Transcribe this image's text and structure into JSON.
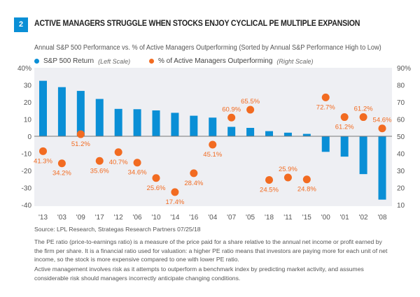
{
  "figure_number": "2",
  "title": "ACTIVE MANAGERS STRUGGLE WHEN STOCKS ENJOY CYCLICAL PE MULTIPLE EXPANSION",
  "chart_data": {
    "type": "bar",
    "title": "ACTIVE MANAGERS STRUGGLE WHEN STOCKS ENJOY CYCLICAL PE MULTIPLE EXPANSION",
    "subtitle": "Annual S&P 500 Performance vs. % of Active Managers Outperforming (Sorted by Annual S&P Performance High to Low)",
    "categories": [
      "'13",
      "'03",
      "'09",
      "'17",
      "'12",
      "'06",
      "'10",
      "'14",
      "'16",
      "'04",
      "'07",
      "'05",
      "'18",
      "'11",
      "'15",
      "'00",
      "'01",
      "'02",
      "'08"
    ],
    "series": [
      {
        "name": "S&P 500 Return",
        "name_note": "(Left Scale)",
        "type": "bar",
        "axis": "left",
        "color": "#0a8fd6",
        "values": [
          32.4,
          28.7,
          26.5,
          21.8,
          16.0,
          15.8,
          15.1,
          13.7,
          12.0,
          10.9,
          5.5,
          4.9,
          3.0,
          2.1,
          1.4,
          -9.1,
          -11.9,
          -22.1,
          -37.0
        ]
      },
      {
        "name": "% of Active Managers Outperforming",
        "name_note": "(Right Scale)",
        "type": "scatter",
        "axis": "right",
        "color": "#f26b21",
        "values": [
          41.3,
          34.2,
          51.2,
          35.6,
          40.7,
          34.6,
          25.6,
          17.4,
          28.4,
          45.1,
          60.9,
          65.5,
          24.5,
          25.9,
          24.8,
          72.7,
          61.2,
          61.2,
          54.6
        ],
        "labels": [
          "41.3%",
          "34.2%",
          "51.2%",
          "35.6%",
          "40.7%",
          "34.6%",
          "25.6%",
          "17.4%",
          "28.4%",
          "45.1%",
          "60.9%",
          "65.5%",
          "24.5%",
          "25.9%",
          "24.8%",
          "72.7%",
          "61.2%",
          "61.2%",
          "54.6%"
        ]
      }
    ],
    "y_left": {
      "range": [
        -40,
        40
      ],
      "ticks": [
        "40%",
        "30",
        "20",
        "10",
        "0",
        "-10",
        "-20",
        "-30",
        "-40"
      ],
      "tick_values": [
        40,
        30,
        20,
        10,
        0,
        -10,
        -20,
        -30,
        -40
      ]
    },
    "y_right": {
      "range": [
        10,
        90
      ],
      "ticks": [
        "90%",
        "80",
        "70",
        "60",
        "50",
        "40",
        "30",
        "20",
        "10"
      ],
      "tick_values": [
        90,
        80,
        70,
        60,
        50,
        40,
        30,
        20,
        10
      ]
    },
    "legend_position": "top-left",
    "grid": false,
    "background": "#eeeff3"
  },
  "source": "Source: LPL Research, Strategas Research Partners   07/25/18",
  "notes": [
    "The PE ratio (price-to-earnings ratio) is a measure of the price paid for a share relative to the annual net income or profit earned by the firm per share. It is a financial ratio used for valuation: a higher PE ratio means that investors are paying more for each unit of net income, so the stock is more expensive compared to one with lower PE ratio.",
    "Active management involves risk as it attempts to outperform a benchmark index by predicting market activity, and assumes considerable risk should managers incorrectly anticipate changing conditions."
  ]
}
